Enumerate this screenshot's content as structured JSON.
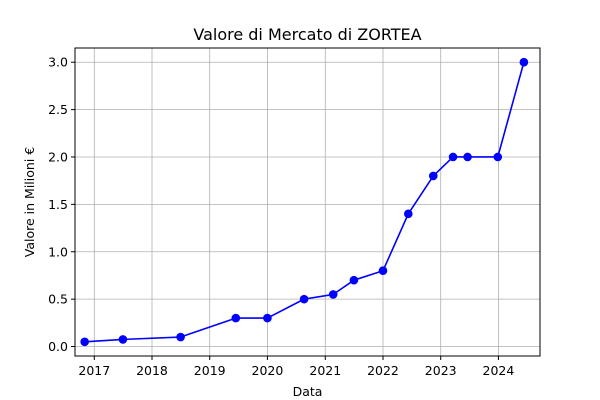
{
  "chart_data": {
    "type": "line",
    "title": "Valore di Mercato di ZORTEA",
    "xlabel": "Data",
    "ylabel": "Valore in Milioni €",
    "x_ticks": [
      "2017",
      "2018",
      "2019",
      "2020",
      "2021",
      "2022",
      "2023",
      "2024"
    ],
    "y_ticks": [
      "0.0",
      "0.5",
      "1.0",
      "1.5",
      "2.0",
      "2.5",
      "3.0"
    ],
    "xlim": [
      "2016-09-01",
      "2024-09-20"
    ],
    "ylim": [
      -0.1,
      3.15
    ],
    "grid": true,
    "series": [
      {
        "color": "#0000ff",
        "marker": "circle",
        "points": [
          {
            "date": "2016-11-01",
            "value": 0.05
          },
          {
            "date": "2017-07-01",
            "value": 0.075
          },
          {
            "date": "2018-07-01",
            "value": 0.1
          },
          {
            "date": "2019-06-15",
            "value": 0.3
          },
          {
            "date": "2020-01-01",
            "value": 0.3
          },
          {
            "date": "2020-08-20",
            "value": 0.5
          },
          {
            "date": "2021-02-20",
            "value": 0.55
          },
          {
            "date": "2021-07-01",
            "value": 0.7
          },
          {
            "date": "2022-01-01",
            "value": 0.8
          },
          {
            "date": "2022-06-10",
            "value": 1.4
          },
          {
            "date": "2022-11-15",
            "value": 1.8
          },
          {
            "date": "2023-03-20",
            "value": 2.0
          },
          {
            "date": "2023-06-20",
            "value": 2.0
          },
          {
            "date": "2023-12-28",
            "value": 2.0
          },
          {
            "date": "2024-06-10",
            "value": 3.0
          }
        ]
      }
    ]
  }
}
